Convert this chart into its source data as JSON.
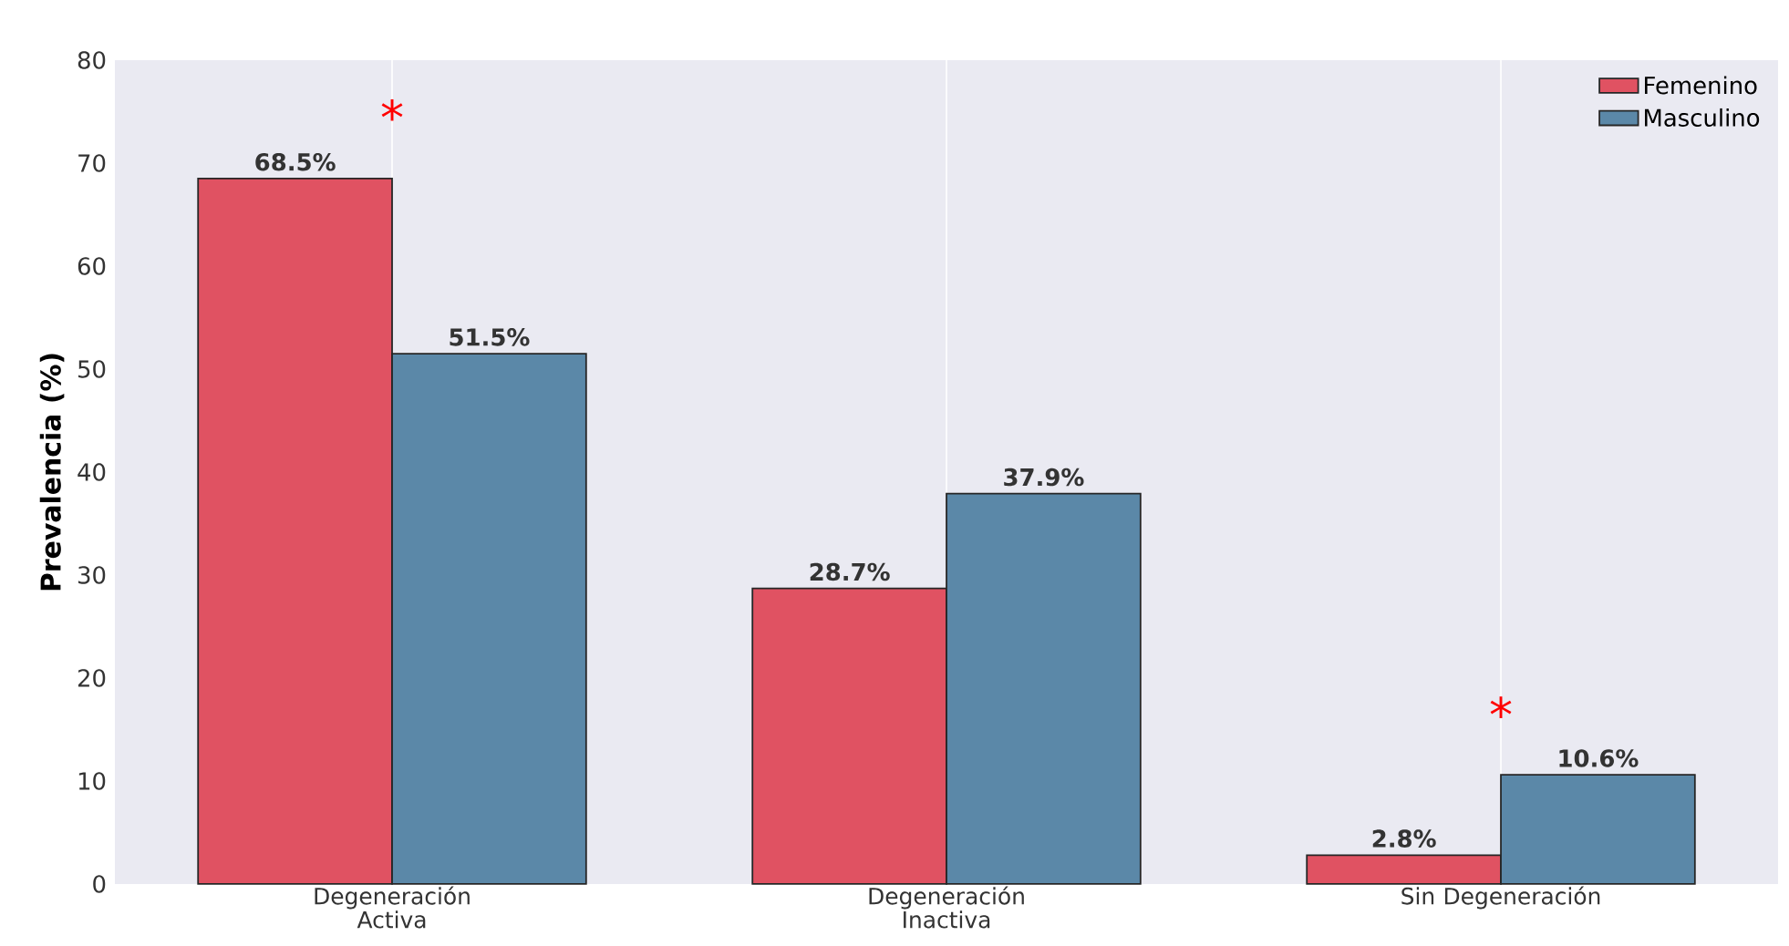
{
  "chart_data": {
    "type": "bar",
    "ylabel": "Prevalencia (%)",
    "categories": [
      "Degeneración Activa",
      "Degeneración Inactiva",
      "Sin Degeneración"
    ],
    "series": [
      {
        "name": "Femenino",
        "color": "#e05262",
        "values": [
          68.5,
          28.7,
          2.8
        ],
        "value_labels": [
          "68.5%",
          "28.7%",
          "2.8%"
        ]
      },
      {
        "name": "Masculino",
        "color": "#5b88a8",
        "values": [
          51.5,
          37.9,
          10.6
        ],
        "value_labels": [
          "51.5%",
          "37.9%",
          "10.6%"
        ]
      }
    ],
    "ylim": [
      0,
      80
    ],
    "yticks": [
      0,
      10,
      20,
      30,
      40,
      50,
      60,
      70,
      80
    ],
    "grid": "x",
    "legend": "top right",
    "annotations": [
      "*",
      "*"
    ]
  }
}
